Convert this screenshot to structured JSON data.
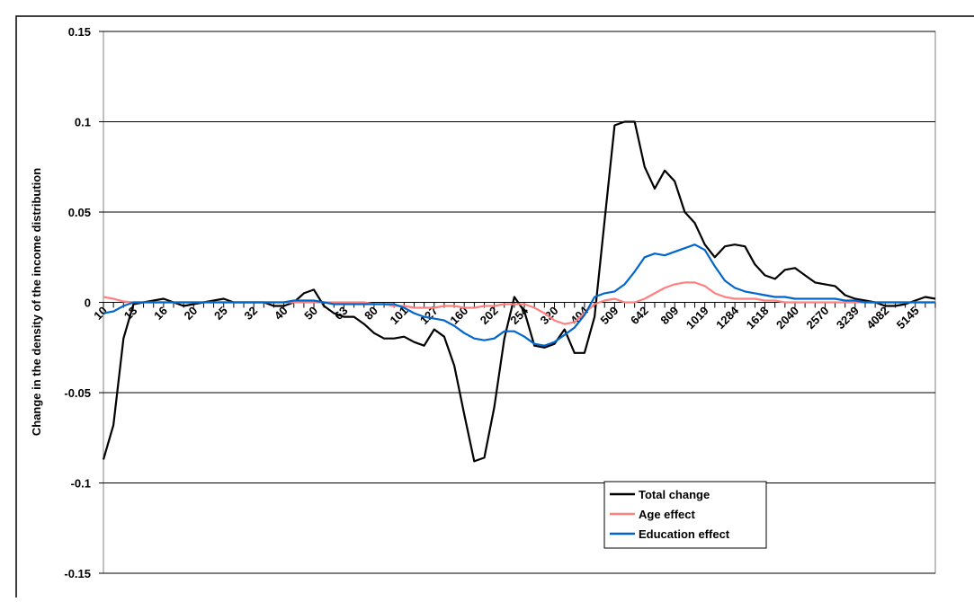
{
  "chart_data": {
    "type": "line",
    "y_label": "Change in the density of the income distribution",
    "categories": [
      "10",
      null,
      null,
      "13",
      null,
      null,
      "16",
      null,
      null,
      "20",
      null,
      null,
      "25",
      null,
      null,
      "32",
      null,
      null,
      "40",
      null,
      null,
      "50",
      null,
      null,
      "63",
      null,
      null,
      "80",
      null,
      null,
      "101",
      null,
      null,
      "127",
      null,
      null,
      "160",
      null,
      null,
      "202",
      null,
      null,
      "254",
      null,
      null,
      "320",
      null,
      null,
      "404",
      null,
      null,
      "509",
      null,
      null,
      "642",
      null,
      null,
      "809",
      null,
      null,
      "1019",
      null,
      null,
      "1284",
      null,
      null,
      "1618",
      null,
      null,
      "2040",
      null,
      null,
      "2570",
      null,
      null,
      "3239",
      null,
      null,
      "4082",
      null,
      null,
      "5145",
      null,
      null
    ],
    "series": [
      {
        "name": "Total change",
        "color": "#000000",
        "values": [
          -0.087,
          -0.068,
          -0.02,
          -0.001,
          0,
          0.001,
          0.002,
          0,
          -0.002,
          -0.001,
          0,
          0.001,
          0.002,
          0,
          0,
          0,
          0,
          -0.002,
          -0.002,
          0,
          0.005,
          0.007,
          -0.002,
          -0.006,
          -0.008,
          -0.008,
          -0.012,
          -0.017,
          -0.02,
          -0.02,
          -0.019,
          -0.022,
          -0.024,
          -0.015,
          -0.019,
          -0.035,
          -0.062,
          -0.088,
          -0.086,
          -0.058,
          -0.02,
          0.003,
          -0.005,
          -0.024,
          -0.025,
          -0.023,
          -0.015,
          -0.028,
          -0.028,
          -0.008,
          0.045,
          0.098,
          0.1,
          0.1,
          0.075,
          0.063,
          0.073,
          0.067,
          0.05,
          0.044,
          0.032,
          0.025,
          0.031,
          0.032,
          0.031,
          0.021,
          0.015,
          0.013,
          0.018,
          0.019,
          0.015,
          0.011,
          0.01,
          0.009,
          0.004,
          0.002,
          0.001,
          0,
          -0.002,
          -0.002,
          -0.001,
          0.001,
          0.003,
          0.002
        ]
      },
      {
        "name": "Age effect",
        "color": "#ff8080",
        "values": [
          0.003,
          0.002,
          0.0005,
          0,
          0,
          0,
          0,
          0,
          0,
          0,
          0,
          0,
          0,
          0,
          0,
          0,
          0,
          0,
          0,
          0,
          0,
          0,
          0,
          0,
          0,
          0,
          0,
          -0.001,
          -0.001,
          -0.002,
          -0.002,
          -0.003,
          -0.003,
          -0.003,
          -0.002,
          -0.002,
          -0.003,
          -0.003,
          -0.002,
          -0.002,
          -0.001,
          -0.001,
          -0.001,
          -0.003,
          -0.006,
          -0.01,
          -0.012,
          -0.011,
          -0.006,
          -0.001,
          0.001,
          0.002,
          0,
          0,
          0.002,
          0.005,
          0.008,
          0.01,
          0.011,
          0.011,
          0.009,
          0.005,
          0.003,
          0.002,
          0.002,
          0.002,
          0.001,
          0.001,
          0,
          0,
          0,
          0,
          0,
          0,
          0,
          0,
          0,
          0,
          0,
          0,
          0,
          0,
          0,
          0
        ]
      },
      {
        "name": "Education effect",
        "color": "#0066cc",
        "values": [
          -0.006,
          -0.005,
          -0.002,
          0,
          0,
          0,
          0,
          0,
          0,
          0,
          0,
          0,
          0,
          0,
          0,
          0,
          0,
          0,
          0,
          0.001,
          0.001,
          0.001,
          0,
          -0.001,
          -0.001,
          -0.001,
          -0.001,
          -0.001,
          -0.001,
          -0.001,
          -0.003,
          -0.006,
          -0.008,
          -0.009,
          -0.01,
          -0.013,
          -0.017,
          -0.02,
          -0.021,
          -0.02,
          -0.016,
          -0.016,
          -0.019,
          -0.023,
          -0.024,
          -0.022,
          -0.018,
          -0.014,
          -0.007,
          0.003,
          0.005,
          0.006,
          0.01,
          0.017,
          0.025,
          0.027,
          0.026,
          0.028,
          0.03,
          0.032,
          0.029,
          0.02,
          0.012,
          0.008,
          0.006,
          0.005,
          0.004,
          0.003,
          0.003,
          0.002,
          0.002,
          0.002,
          0.002,
          0.002,
          0.001,
          0.001,
          0,
          0,
          0,
          0,
          0,
          0,
          0,
          0
        ]
      }
    ],
    "ylim": [
      -0.15,
      0.15
    ],
    "yticks": [
      -0.15,
      -0.1,
      -0.05,
      0,
      0.05,
      0.1,
      0.15
    ],
    "grid": true,
    "legend": "lower right"
  }
}
